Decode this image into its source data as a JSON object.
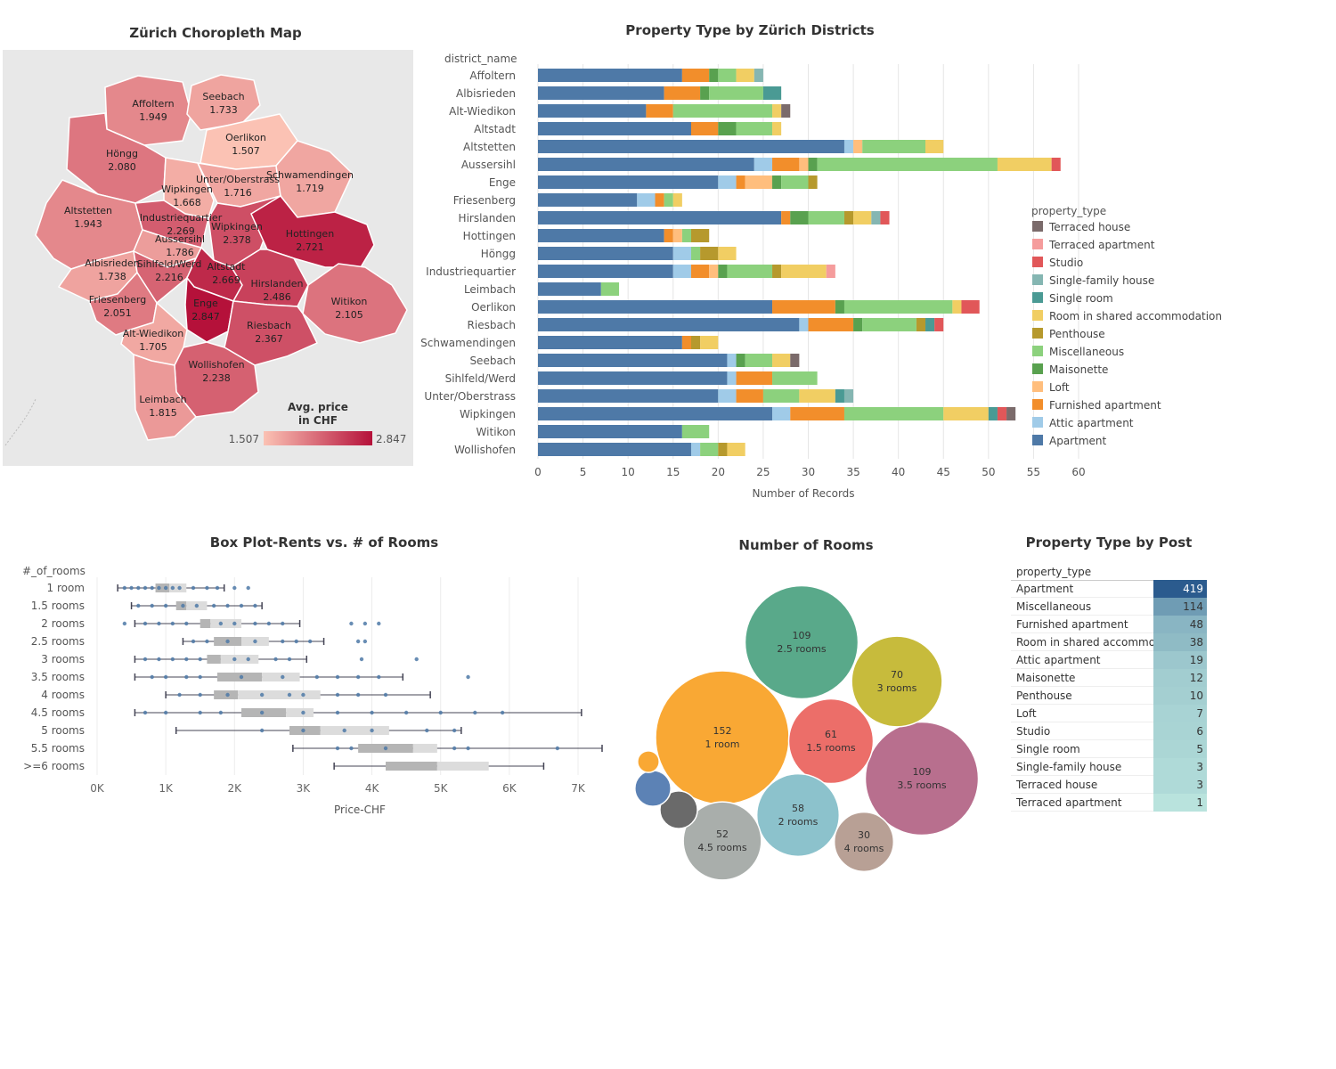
{
  "map": {
    "title": "Zürich Choropleth Map",
    "legend_title_1": "Avg. price",
    "legend_title_2": "in CHF",
    "legend_min": "1.507",
    "legend_max": "2.847",
    "color_low": "#fbc2b4",
    "color_high": "#b5113a",
    "districts": [
      {
        "name": "Affoltern",
        "value": "1.949",
        "v": 1.949
      },
      {
        "name": "Seebach",
        "value": "1.733",
        "v": 1.733
      },
      {
        "name": "Oerlikon",
        "value": "1.507",
        "v": 1.507
      },
      {
        "name": "Höngg",
        "value": "2.080",
        "v": 2.08
      },
      {
        "name": "Wipkingen",
        "value": "1.668",
        "v": 1.668
      },
      {
        "name": "Unter/Oberstrass",
        "value": "1.716",
        "v": 1.716
      },
      {
        "name": "Schwamendingen",
        "value": "1.719",
        "v": 1.719
      },
      {
        "name": "Altstetten",
        "value": "1.943",
        "v": 1.943
      },
      {
        "name": "Industriequartier",
        "value": "2.269",
        "v": 2.269
      },
      {
        "name": "Wipkingen",
        "value": "2.378",
        "v": 2.378
      },
      {
        "name": "Hottingen",
        "value": "2.721",
        "v": 2.721
      },
      {
        "name": "Aussersihl",
        "value": "1.786",
        "v": 1.786
      },
      {
        "name": "Albisrieden",
        "value": "1.738",
        "v": 1.738
      },
      {
        "name": "Sihlfeld/Werd",
        "value": "2.216",
        "v": 2.216
      },
      {
        "name": "Altstadt",
        "value": "2.669",
        "v": 2.669
      },
      {
        "name": "Hirslanden",
        "value": "2.486",
        "v": 2.486
      },
      {
        "name": "Friesenberg",
        "value": "2.051",
        "v": 2.051
      },
      {
        "name": "Enge",
        "value": "2.847",
        "v": 2.847
      },
      {
        "name": "Witikon",
        "value": "2.105",
        "v": 2.105
      },
      {
        "name": "Riesbach",
        "value": "2.367",
        "v": 2.367
      },
      {
        "name": "Alt-Wiedikon",
        "value": "1.705",
        "v": 1.705
      },
      {
        "name": "Wollishofen",
        "value": "2.238",
        "v": 2.238
      },
      {
        "name": "Leimbach",
        "value": "1.815",
        "v": 1.815
      }
    ]
  },
  "chart_data": [
    {
      "type": "bar",
      "orientation": "horizontal-stacked",
      "title": "Property Type by Zürich Districts",
      "row_header": "district_name",
      "xlabel": "Number of Records",
      "xlim": [
        0,
        60
      ],
      "xticks": [
        "0",
        "5",
        "10",
        "15",
        "20",
        "25",
        "30",
        "35",
        "40",
        "45",
        "50",
        "55",
        "60"
      ],
      "legend_title": "property_type",
      "legend_position": "right",
      "legend": [
        {
          "name": "Terraced house",
          "color": "#7b6b6b"
        },
        {
          "name": "Terraced apartment",
          "color": "#f59c9c"
        },
        {
          "name": "Studio",
          "color": "#e15759"
        },
        {
          "name": "Single-family house",
          "color": "#85b6b2"
        },
        {
          "name": "Single room",
          "color": "#4a9a94"
        },
        {
          "name": "Room in shared accommodation",
          "color": "#f1ce63"
        },
        {
          "name": "Penthouse",
          "color": "#b6992d"
        },
        {
          "name": "Miscellaneous",
          "color": "#8cd17d"
        },
        {
          "name": "Maisonette",
          "color": "#59a14f"
        },
        {
          "name": "Loft",
          "color": "#ffbe7d"
        },
        {
          "name": "Furnished apartment",
          "color": "#f28e2b"
        },
        {
          "name": "Attic apartment",
          "color": "#a0cbe8"
        },
        {
          "name": "Apartment",
          "color": "#4e79a7"
        }
      ],
      "categories": [
        "Affoltern",
        "Albisrieden",
        "Alt-Wiedikon",
        "Altstadt",
        "Altstetten",
        "Aussersihl",
        "Enge",
        "Friesenberg",
        "Hirslanden",
        "Hottingen",
        "Höngg",
        "Industriequartier",
        "Leimbach",
        "Oerlikon",
        "Riesbach",
        "Schwamendingen",
        "Seebach",
        "Sihlfeld/Werd",
        "Unter/Oberstrass",
        "Wipkingen",
        "Witikon",
        "Wollishofen"
      ],
      "stack_order": [
        "Apartment",
        "Attic apartment",
        "Furnished apartment",
        "Loft",
        "Maisonette",
        "Miscellaneous",
        "Penthouse",
        "Room in shared accommodation",
        "Single room",
        "Single-family house",
        "Studio",
        "Terraced apartment",
        "Terraced house"
      ],
      "rows": [
        [
          16,
          0,
          3,
          0,
          1,
          2,
          0,
          2,
          0,
          1,
          0,
          0,
          0
        ],
        [
          14,
          0,
          4,
          0,
          1,
          6,
          0,
          0,
          2,
          0,
          0,
          0,
          0
        ],
        [
          12,
          0,
          3,
          0,
          0,
          11,
          0,
          1,
          0,
          0,
          0,
          0,
          1
        ],
        [
          17,
          0,
          3,
          0,
          2,
          4,
          0,
          1,
          0,
          0,
          0,
          0,
          0
        ],
        [
          34,
          1,
          0,
          1,
          0,
          7,
          0,
          2,
          0,
          0,
          0,
          0,
          0
        ],
        [
          24,
          2,
          3,
          1,
          1,
          20,
          0,
          6,
          0,
          0,
          1,
          0,
          0
        ],
        [
          20,
          2,
          1,
          3,
          1,
          3,
          1,
          0,
          0,
          0,
          0,
          0,
          0
        ],
        [
          11,
          2,
          1,
          0,
          0,
          1,
          0,
          1,
          0,
          0,
          0,
          0,
          0
        ],
        [
          27,
          0,
          1,
          0,
          2,
          4,
          1,
          2,
          0,
          1,
          1,
          0,
          0
        ],
        [
          14,
          0,
          1,
          1,
          0,
          1,
          2,
          0,
          0,
          0,
          0,
          0,
          0
        ],
        [
          15,
          2,
          0,
          0,
          0,
          1,
          2,
          2,
          0,
          0,
          0,
          0,
          0
        ],
        [
          15,
          2,
          2,
          1,
          1,
          5,
          1,
          5,
          0,
          0,
          0,
          1,
          0
        ],
        [
          7,
          0,
          0,
          0,
          0,
          2,
          0,
          0,
          0,
          0,
          0,
          0,
          0
        ],
        [
          26,
          0,
          7,
          0,
          1,
          12,
          0,
          1,
          0,
          0,
          2,
          0,
          0
        ],
        [
          29,
          1,
          5,
          0,
          1,
          6,
          1,
          0,
          1,
          0,
          1,
          0,
          0
        ],
        [
          16,
          0,
          1,
          0,
          0,
          0,
          1,
          2,
          0,
          0,
          0,
          0,
          0
        ],
        [
          21,
          1,
          0,
          0,
          1,
          3,
          0,
          2,
          0,
          0,
          0,
          0,
          1
        ],
        [
          21,
          1,
          4,
          0,
          0,
          5,
          0,
          0,
          0,
          0,
          0,
          0,
          0
        ],
        [
          20,
          2,
          3,
          0,
          0,
          4,
          0,
          4,
          1,
          1,
          0,
          0,
          0
        ],
        [
          26,
          2,
          6,
          0,
          0,
          11,
          0,
          5,
          1,
          0,
          1,
          0,
          1
        ],
        [
          16,
          0,
          0,
          0,
          0,
          3,
          0,
          0,
          0,
          0,
          0,
          0,
          0
        ],
        [
          17,
          1,
          0,
          0,
          0,
          2,
          1,
          2,
          0,
          0,
          0,
          0,
          0
        ]
      ]
    },
    {
      "type": "box",
      "orientation": "horizontal",
      "title": "Box Plot-Rents vs. # of Rooms",
      "row_header": "#_of_rooms",
      "xlabel": "Price-CHF",
      "xlim": [
        0,
        7000
      ],
      "xticks": [
        "0K",
        "1K",
        "2K",
        "3K",
        "4K",
        "5K",
        "6K",
        "7K"
      ],
      "categories": [
        "1 room",
        "1.5 rooms",
        "2 rooms",
        "2.5 rooms",
        "3 rooms",
        "3.5 rooms",
        "4 rooms",
        "4.5 rooms",
        "5 rooms",
        "5.5 rooms",
        ">=6 rooms"
      ],
      "boxes": [
        {
          "whisker_low": 300,
          "q1": 850,
          "median": 1050,
          "q3": 1300,
          "whisker_high": 1850,
          "outliers": [
            2000,
            2200
          ],
          "points": [
            400,
            500,
            600,
            700,
            800,
            900,
            1000,
            1100,
            1200,
            1400,
            1600,
            1750
          ]
        },
        {
          "whisker_low": 500,
          "q1": 1150,
          "median": 1300,
          "q3": 1600,
          "whisker_high": 2400,
          "outliers": [],
          "points": [
            600,
            800,
            1000,
            1250,
            1450,
            1700,
            1900,
            2100,
            2300
          ]
        },
        {
          "whisker_low": 550,
          "q1": 1500,
          "median": 1650,
          "q3": 2100,
          "whisker_high": 2950,
          "outliers": [
            400,
            3700,
            3900,
            4100
          ],
          "points": [
            700,
            900,
            1100,
            1300,
            1800,
            2000,
            2300,
            2500,
            2700
          ]
        },
        {
          "whisker_low": 1250,
          "q1": 1700,
          "median": 2100,
          "q3": 2500,
          "whisker_high": 3300,
          "outliers": [
            3800,
            3900
          ],
          "points": [
            1400,
            1600,
            1900,
            2300,
            2700,
            2900,
            3100
          ]
        },
        {
          "whisker_low": 550,
          "q1": 1600,
          "median": 1800,
          "q3": 2350,
          "whisker_high": 3050,
          "outliers": [
            3850,
            4650
          ],
          "points": [
            700,
            900,
            1100,
            1300,
            1500,
            2000,
            2200,
            2600,
            2800
          ]
        },
        {
          "whisker_low": 550,
          "q1": 1750,
          "median": 2400,
          "q3": 2950,
          "whisker_high": 4450,
          "outliers": [
            5400
          ],
          "points": [
            800,
            1000,
            1300,
            1500,
            2100,
            2700,
            3200,
            3500,
            3800,
            4100
          ]
        },
        {
          "whisker_low": 1000,
          "q1": 1700,
          "median": 2050,
          "q3": 3250,
          "whisker_high": 4850,
          "outliers": [],
          "points": [
            1200,
            1500,
            1900,
            2400,
            2800,
            3000,
            3500,
            3800,
            4200
          ]
        },
        {
          "whisker_low": 550,
          "q1": 2100,
          "median": 2750,
          "q3": 3150,
          "whisker_high": 7050,
          "outliers": [],
          "points": [
            700,
            1000,
            1500,
            1800,
            2400,
            3000,
            3500,
            4000,
            4500,
            5000,
            5500,
            5900
          ]
        },
        {
          "whisker_low": 1150,
          "q1": 2800,
          "median": 3250,
          "q3": 4250,
          "whisker_high": 5300,
          "outliers": [],
          "points": [
            2400,
            3000,
            3600,
            4000,
            4800,
            5200
          ]
        },
        {
          "whisker_low": 2850,
          "q1": 3800,
          "median": 4600,
          "q3": 4950,
          "whisker_high": 7350,
          "outliers": [],
          "points": [
            3500,
            3700,
            4200,
            5200,
            5400,
            6700
          ]
        },
        {
          "whisker_low": 3450,
          "q1": 4200,
          "median": 4950,
          "q3": 5700,
          "whisker_high": 6500,
          "outliers": [],
          "points": []
        }
      ]
    },
    {
      "type": "bubble",
      "title": "Number of Rooms",
      "bubbles": [
        {
          "label": "1 room",
          "value": "152",
          "v": 152,
          "color": "#f9a834"
        },
        {
          "label": "2.5 rooms",
          "value": "109",
          "v": 109,
          "color": "#59a98a"
        },
        {
          "label": "3.5 rooms",
          "value": "109",
          "v": 109,
          "color": "#b86f8e"
        },
        {
          "label": "3 rooms",
          "value": "70",
          "v": 70,
          "color": "#c7bb3c"
        },
        {
          "label": "1.5 rooms",
          "value": "61",
          "v": 61,
          "color": "#ec6e69"
        },
        {
          "label": "2 rooms",
          "value": "58",
          "v": 58,
          "color": "#8cc2cc"
        },
        {
          "label": "4.5 rooms",
          "value": "52",
          "v": 52,
          "color": "#a9aeab"
        },
        {
          "label": "4 rooms",
          "value": "30",
          "v": 30,
          "color": "#b8a095"
        },
        {
          "label": "",
          "value": "",
          "v": 12,
          "color": "#6a6a6a"
        },
        {
          "label": "",
          "value": "",
          "v": 11,
          "color": "#5c82b5"
        },
        {
          "label": "",
          "value": "",
          "v": 4,
          "color": "#f9a834"
        }
      ]
    },
    {
      "type": "table",
      "title": "Property Type by Post",
      "column_header": "property_type",
      "color_low": "#b9e3dd",
      "color_high": "#2b5b8e",
      "rows": [
        {
          "label": "Apartment",
          "value": "419",
          "v": 419
        },
        {
          "label": "Miscellaneous",
          "value": "114",
          "v": 114
        },
        {
          "label": "Furnished apartment",
          "value": "48",
          "v": 48
        },
        {
          "label": "Room in shared accommo..",
          "value": "38",
          "v": 38
        },
        {
          "label": "Attic apartment",
          "value": "19",
          "v": 19
        },
        {
          "label": "Maisonette",
          "value": "12",
          "v": 12
        },
        {
          "label": "Penthouse",
          "value": "10",
          "v": 10
        },
        {
          "label": "Loft",
          "value": "7",
          "v": 7
        },
        {
          "label": "Studio",
          "value": "6",
          "v": 6
        },
        {
          "label": "Single room",
          "value": "5",
          "v": 5
        },
        {
          "label": "Single-family house",
          "value": "3",
          "v": 3
        },
        {
          "label": "Terraced house",
          "value": "3",
          "v": 3
        },
        {
          "label": "Terraced apartment",
          "value": "1",
          "v": 1
        }
      ]
    }
  ]
}
